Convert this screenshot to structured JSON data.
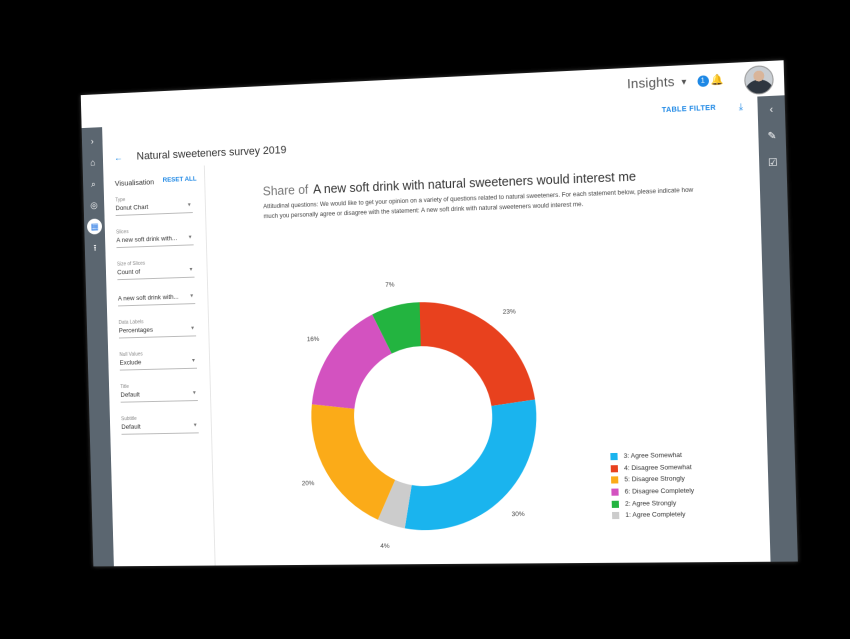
{
  "header": {
    "app_title": "Insights",
    "notification_count": "1",
    "icons": {
      "caret": "caret-down-icon",
      "bell": "bell-icon",
      "avatar": "user-avatar"
    }
  },
  "left_nav": {
    "icons": [
      "chevron-right-icon",
      "home-icon",
      "search-icon",
      "globe-icon",
      "dashboard-icon",
      "upload-icon"
    ]
  },
  "right_nav": {
    "icons": [
      "chevron-left-icon",
      "edit-icon",
      "checklist-icon"
    ]
  },
  "toolbar": {
    "table_filter_label": "TABLE FILTER",
    "download_icon": "download-icon"
  },
  "breadcrumb": {
    "title": "Natural sweeteners survey 2019",
    "back_icon": "arrow-left-icon"
  },
  "settings": {
    "heading": "Visualisation",
    "reset_label": "RESET ALL",
    "fields": [
      {
        "label": "Type",
        "value": "Donut Chart"
      },
      {
        "label": "Slices",
        "value": "A new soft drink with..."
      },
      {
        "label": "Size of Slices",
        "value": "Count of"
      },
      {
        "label": "",
        "value": "A new soft drink with..."
      },
      {
        "label": "Data Labels",
        "value": "Percentages"
      },
      {
        "label": "Null Values",
        "value": "Exclude"
      },
      {
        "label": "Title",
        "value": "Default"
      },
      {
        "label": "Subtitle",
        "value": "Default"
      }
    ]
  },
  "chart": {
    "title_prefix": "Share of",
    "title": "A new soft drink with natural sweeteners would interest me",
    "subtitle": "Attitudinal questions: We would like to get your opinion on a variety of questions related to natural sweeteners.  For each statement below, please indicate how much you personally agree or disagree with the statement: A new soft drink with natural sweeteners would interest me."
  },
  "chart_data": {
    "type": "pie",
    "donut": true,
    "slices": [
      {
        "name": "4: Disagree Somewhat",
        "value": 23,
        "label": "23%",
        "color": "#e8411e"
      },
      {
        "name": "3: Agree Somewhat",
        "value": 30,
        "label": "30%",
        "color": "#1ab4ee"
      },
      {
        "name": "1: Agree Completely",
        "value": 4,
        "label": "4%",
        "color": "#cccccc"
      },
      {
        "name": "5: Disagree Strongly",
        "value": 20,
        "label": "20%",
        "color": "#fbab18"
      },
      {
        "name": "6: Disagree Completely",
        "value": 16,
        "label": "16%",
        "color": "#d352c0"
      },
      {
        "name": "2: Agree Strongly",
        "value": 7,
        "label": "7%",
        "color": "#23b440"
      }
    ],
    "legend": [
      {
        "name": "3: Agree Somewhat",
        "color": "#1ab4ee"
      },
      {
        "name": "4: Disagree Somewhat",
        "color": "#e8411e"
      },
      {
        "name": "5: Disagree Strongly",
        "color": "#fbab18"
      },
      {
        "name": "6: Disagree Completely",
        "color": "#d352c0"
      },
      {
        "name": "2: Agree Strongly",
        "color": "#23b440"
      },
      {
        "name": "1: Agree Completely",
        "color": "#cccccc"
      }
    ],
    "legend_position": "right"
  }
}
